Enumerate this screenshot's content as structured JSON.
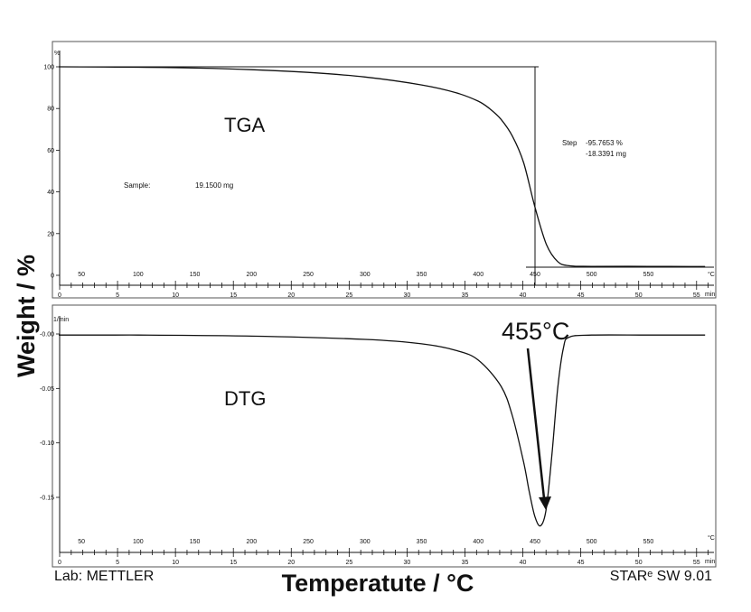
{
  "chart_data": [
    {
      "type": "line",
      "name": "tga_panel",
      "title": "TGA",
      "y_unit": "%",
      "ylim": [
        0,
        100
      ],
      "yticks": [
        "0",
        "20",
        "40",
        "60",
        "80",
        "100"
      ],
      "time_axis_unit": "min",
      "time_ticks": [
        "0",
        "5",
        "10",
        "15",
        "20",
        "25",
        "30",
        "35",
        "40",
        "45",
        "50",
        "55"
      ],
      "temp_axis_unit": "°C",
      "temp_ticks": [
        "50",
        "100",
        "150",
        "200",
        "250",
        "300",
        "350",
        "400",
        "450",
        "500",
        "550"
      ],
      "series": [
        {
          "temperature_C": [
            30,
            100,
            150,
            200,
            250,
            300,
            350,
            380,
            400,
            410,
            420,
            430,
            440,
            450,
            460,
            470,
            480,
            500,
            550,
            600
          ],
          "values": [
            100,
            99.8,
            99.4,
            98.6,
            97.3,
            95.1,
            91.3,
            87.6,
            83.5,
            79.9,
            74.8,
            66.8,
            53.9,
            32.6,
            14.9,
            6.6,
            4.6,
            4.3,
            4.3,
            4.2
          ]
        }
      ],
      "annotations": {
        "sample_label": "Sample:",
        "sample_value": "19.1500 mg",
        "step_label": "Step",
        "step_percent": "-95.7653 %",
        "step_mass": "-18.3391 mg"
      }
    },
    {
      "type": "line",
      "name": "dtg_panel",
      "title": "DTG",
      "y_unit": "1/min",
      "ylim": [
        -0.18,
        0.01
      ],
      "yticks": [
        "-0.00",
        "-0.05",
        "-0.10",
        "-0.15"
      ],
      "time_axis_unit": "min",
      "time_ticks": [
        "0",
        "5",
        "10",
        "15",
        "20",
        "25",
        "30",
        "35",
        "40",
        "45",
        "50",
        "55"
      ],
      "temp_axis_unit": "°C",
      "temp_ticks": [
        "50",
        "100",
        "150",
        "200",
        "250",
        "300",
        "350",
        "400",
        "450",
        "500",
        "550"
      ],
      "series": [
        {
          "temperature_C": [
            30,
            100,
            200,
            300,
            350,
            380,
            400,
            420,
            430,
            440,
            445,
            450,
            455,
            460,
            465,
            470,
            475,
            480,
            500,
            550,
            600
          ],
          "values": [
            -0.001,
            -0.001,
            -0.002,
            -0.005,
            -0.009,
            -0.015,
            -0.024,
            -0.048,
            -0.075,
            -0.118,
            -0.145,
            -0.168,
            -0.176,
            -0.16,
            -0.11,
            -0.05,
            -0.013,
            -0.003,
            -0.001,
            -0.001,
            -0.001
          ]
        }
      ],
      "annotations": {
        "peak_label": "455°C",
        "peak_temperature_C": 455
      }
    }
  ],
  "labels": {
    "ylabel": "Weight / %",
    "xlabel": "Temperatute / °C",
    "lab": "Lab: METTLER",
    "software": "STARᵉ SW 9.01"
  }
}
